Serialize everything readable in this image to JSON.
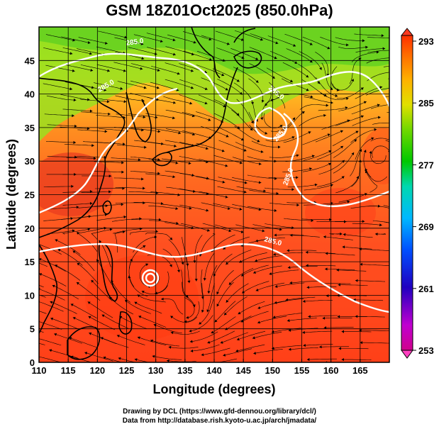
{
  "title": "GSM 18Z01Oct2025 (850.0hPa)",
  "credits": {
    "line1": "Drawing by DCL (https://www.gfd-dennou.org/library/dcl/)",
    "line2": "Data from http://database.rish.kyoto-u.ac.jp/arch/jmadata/"
  },
  "map": {
    "x_axis_label": "Longitude (degrees)",
    "y_axis_label": "Latitude  (degrees)",
    "lon_ticks": [
      "110",
      "115",
      "120",
      "125",
      "130",
      "135",
      "140",
      "145",
      "150",
      "155",
      "160",
      "165"
    ],
    "lat_ticks": [
      "0",
      "5",
      "10",
      "15",
      "20",
      "25",
      "30",
      "35",
      "40",
      "45"
    ],
    "contour_labels": [
      "285.0",
      "285.0",
      "285.0",
      "285.0",
      "285.0",
      "285.0"
    ]
  },
  "colorbar": {
    "ticks": [
      "293",
      "285",
      "277",
      "269",
      "261",
      "253"
    ],
    "stops": [
      "#c0004c",
      "#ff00ff",
      "#5a00b4",
      "#0000c8",
      "#0060ff",
      "#00c8ff",
      "#00e0a0",
      "#00c800",
      "#7ad800",
      "#d8e000",
      "#ffb000",
      "#ff7000",
      "#ff3800"
    ]
  },
  "colors": {
    "background": "#ffffff",
    "warm_field": "#ff4a1c",
    "mid_field": "#ffa020",
    "cool_field": "#80dd20",
    "contour": "#ffffff",
    "frame": "#000000"
  }
}
